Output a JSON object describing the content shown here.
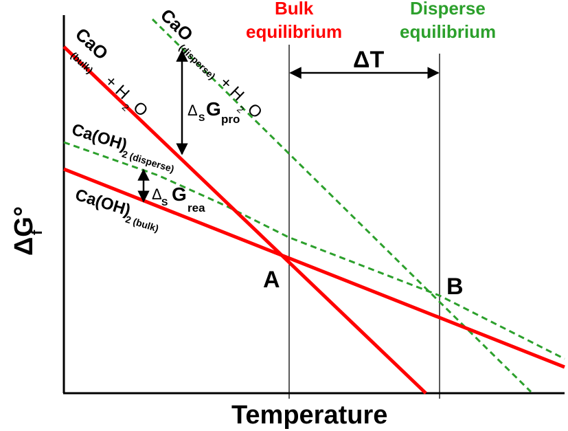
{
  "axes": {
    "x_label": "Temperature",
    "y_label_main": "ΔG°",
    "y_label_sub": "f"
  },
  "headers": {
    "bulk_line1": "Bulk",
    "bulk_line2": "equilibrium",
    "disperse_line1": "Disperse",
    "disperse_line2": "equilibrium",
    "bulk_color": "#ff0000",
    "disperse_color": "#2ca02c"
  },
  "delta_t": "ΔT",
  "points": {
    "a": "A",
    "b": "B"
  },
  "lines": {
    "cao_bulk": {
      "main": "CaO",
      "sub": "(bulk)",
      "plus": "+ H",
      "sub2": "2",
      "tail": "O"
    },
    "cao_disperse": {
      "main": "CaO",
      "sub": "(disperse)",
      "plus": "+ H",
      "sub2": "2",
      "tail": "O"
    },
    "caoh2_bulk": {
      "main": "Ca(OH)",
      "sub": "2 (bulk)"
    },
    "caoh2_disperse": {
      "main": "Ca(OH)",
      "sub": "2 (disperse)"
    }
  },
  "annotations": {
    "gpro": {
      "delta": "Δ",
      "s": "S",
      "g": "G",
      "sub": "pro"
    },
    "grea": {
      "delta": "Δ",
      "s": "S",
      "g": "G",
      "sub": "rea"
    }
  }
}
